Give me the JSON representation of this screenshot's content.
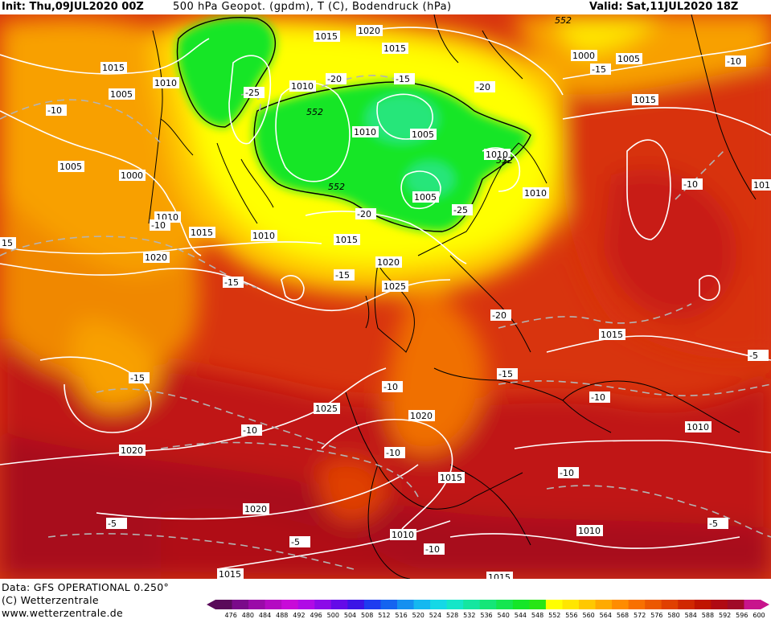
{
  "header": {
    "init": "Init: Thu,09JUL2020 00Z",
    "product": "500 hPa Geopot. (gpdm), T (C), Bodendruck (hPa)",
    "valid": "Valid: Sat,11JUL2020 18Z"
  },
  "footer": {
    "data_source": "Data: GFS OPERATIONAL 0.250°",
    "copyright": "(C) Wetterzentrale",
    "website": "www.wetterzentrale.de"
  },
  "colorbar": {
    "ticks": [
      "476",
      "480",
      "484",
      "488",
      "492",
      "496",
      "500",
      "504",
      "508",
      "512",
      "516",
      "520",
      "524",
      "528",
      "532",
      "536",
      "540",
      "544",
      "548",
      "552",
      "556",
      "560",
      "564",
      "568",
      "572",
      "576",
      "580",
      "584",
      "588",
      "592",
      "596",
      "600"
    ],
    "colors": [
      "#5a0a5a",
      "#7a0a8a",
      "#9a0aa8",
      "#b40ac2",
      "#c80ad8",
      "#b00ae6",
      "#8c0ae8",
      "#640ae8",
      "#3c14e6",
      "#1e3cf0",
      "#1464f0",
      "#1490f0",
      "#14b8f0",
      "#14d8e6",
      "#14e6c8",
      "#14e6a0",
      "#14e678",
      "#14e650",
      "#14e628",
      "#28e614",
      "#ffff00",
      "#ffe600",
      "#ffc800",
      "#ffaa00",
      "#ff8c00",
      "#f87000",
      "#ec5800",
      "#e04000",
      "#d02800",
      "#c01400",
      "#b00a14",
      "#a00a28",
      "#c8148c"
    ]
  },
  "map_labels": {
    "isobars": [
      {
        "text": "1015"
      },
      {
        "text": "1020"
      },
      {
        "text": "1015"
      },
      {
        "text": "1015"
      },
      {
        "text": "1010"
      },
      {
        "text": "1005"
      },
      {
        "text": "1010"
      },
      {
        "text": "1000"
      },
      {
        "text": "1005"
      },
      {
        "text": "1015"
      },
      {
        "text": "1010"
      },
      {
        "text": "1005"
      },
      {
        "text": "1005"
      },
      {
        "text": "1010"
      },
      {
        "text": "1010"
      },
      {
        "text": "1005"
      },
      {
        "text": "1000"
      },
      {
        "text": "1010"
      },
      {
        "text": "1015"
      },
      {
        "text": "1010"
      },
      {
        "text": "1015"
      },
      {
        "text": "1020"
      },
      {
        "text": "1020"
      },
      {
        "text": "1025"
      },
      {
        "text": "1015"
      },
      {
        "text": "1025"
      },
      {
        "text": "1020"
      },
      {
        "text": "1020"
      },
      {
        "text": "1010"
      },
      {
        "text": "1015"
      },
      {
        "text": "1020"
      },
      {
        "text": "1010"
      },
      {
        "text": "1010"
      },
      {
        "text": "1015"
      },
      {
        "text": "1015"
      }
    ],
    "temperatures": [
      {
        "text": "-10"
      },
      {
        "text": "-25"
      },
      {
        "text": "-20"
      },
      {
        "text": "-15"
      },
      {
        "text": "-20"
      },
      {
        "text": "-15"
      },
      {
        "text": "-10"
      },
      {
        "text": "-10"
      },
      {
        "text": "-20"
      },
      {
        "text": "-25"
      },
      {
        "text": "-10"
      },
      {
        "text": "-15"
      },
      {
        "text": "-15"
      },
      {
        "text": "-20"
      },
      {
        "text": "-15"
      },
      {
        "text": "-15"
      },
      {
        "text": "-10"
      },
      {
        "text": "-10"
      },
      {
        "text": "-10"
      },
      {
        "text": "-10"
      },
      {
        "text": "-10"
      },
      {
        "text": "-5"
      },
      {
        "text": "-5"
      },
      {
        "text": "-10"
      },
      {
        "text": "-5"
      },
      {
        "text": "-5"
      },
      {
        "text": "15"
      }
    ],
    "geopotential": [
      {
        "text": "552"
      },
      {
        "text": "552"
      },
      {
        "text": "552"
      },
      {
        "text": "552"
      }
    ],
    "edge_label": {
      "text": "101"
    }
  }
}
